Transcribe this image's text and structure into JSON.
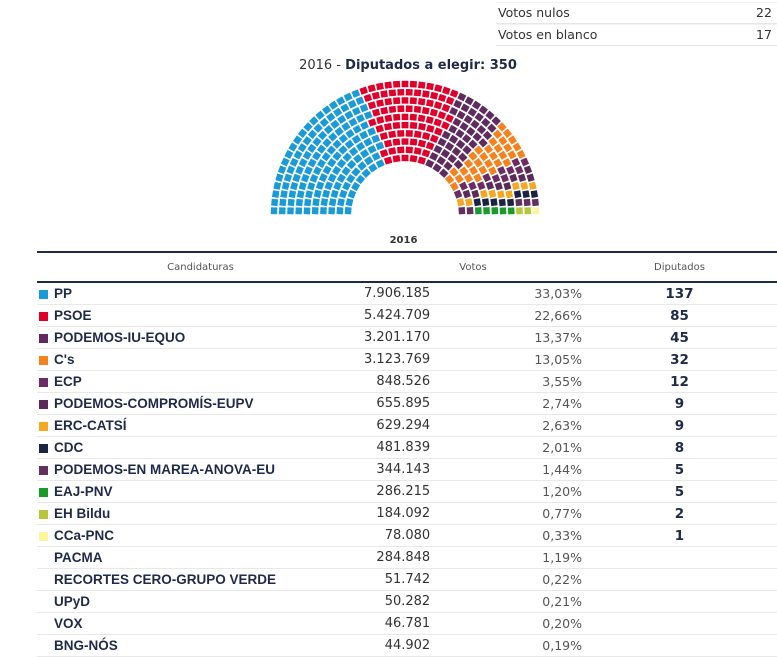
{
  "totals": [
    {
      "label": "Votos nulos",
      "value": "22"
    },
    {
      "label": "Votos en blanco",
      "value": "17"
    }
  ],
  "title": {
    "year": "2016 - ",
    "label": "Diputados a elegir: 350"
  },
  "table": {
    "year": "2016",
    "headers": {
      "candidaturas": "Candidaturas",
      "votos": "Votos",
      "diputados": "Diputados"
    },
    "rows": [
      {
        "name": "PP",
        "votes": "7.906.185",
        "pct": "33,03%",
        "seats": "137",
        "color": "#1a9ad6"
      },
      {
        "name": "PSOE",
        "votes": "5.424.709",
        "pct": "22,66%",
        "seats": "85",
        "color": "#e0002a"
      },
      {
        "name": "PODEMOS-IU-EQUO",
        "votes": "3.201.170",
        "pct": "13,37%",
        "seats": "45",
        "color": "#5f2b5f"
      },
      {
        "name": "C's",
        "votes": "3.123.769",
        "pct": "13,05%",
        "seats": "32",
        "color": "#f5821f"
      },
      {
        "name": "ECP",
        "votes": "848.526",
        "pct": "3,55%",
        "seats": "12",
        "color": "#6a2c62"
      },
      {
        "name": "PODEMOS-COMPROMÍS-EUPV",
        "votes": "655.895",
        "pct": "2,74%",
        "seats": "9",
        "color": "#5a2a58"
      },
      {
        "name": "ERC-CATSÍ",
        "votes": "629.294",
        "pct": "2,63%",
        "seats": "9",
        "color": "#f5a623"
      },
      {
        "name": "CDC",
        "votes": "481.839",
        "pct": "2,01%",
        "seats": "8",
        "color": "#1b2342"
      },
      {
        "name": "PODEMOS-EN MAREA-ANOVA-EU",
        "votes": "344.143",
        "pct": "1,44%",
        "seats": "5",
        "color": "#63305e"
      },
      {
        "name": "EAJ-PNV",
        "votes": "286.215",
        "pct": "1,20%",
        "seats": "5",
        "color": "#1a9a2a"
      },
      {
        "name": "EH Bildu",
        "votes": "184.092",
        "pct": "0,77%",
        "seats": "2",
        "color": "#b6c739"
      },
      {
        "name": "CCa-PNC",
        "votes": "78.080",
        "pct": "0,33%",
        "seats": "1",
        "color": "#fbf59b"
      },
      {
        "name": "PACMA",
        "votes": "284.848",
        "pct": "1,19%",
        "seats": "",
        "color": ""
      },
      {
        "name": "RECORTES CERO-GRUPO VERDE",
        "votes": "51.742",
        "pct": "0,22%",
        "seats": "",
        "color": ""
      },
      {
        "name": "UPyD",
        "votes": "50.282",
        "pct": "0,21%",
        "seats": "",
        "color": ""
      },
      {
        "name": "VOX",
        "votes": "46.781",
        "pct": "0,20%",
        "seats": "",
        "color": ""
      },
      {
        "name": "BNG-NÓS",
        "votes": "44.902",
        "pct": "0,19%",
        "seats": "",
        "color": ""
      }
    ]
  }
}
